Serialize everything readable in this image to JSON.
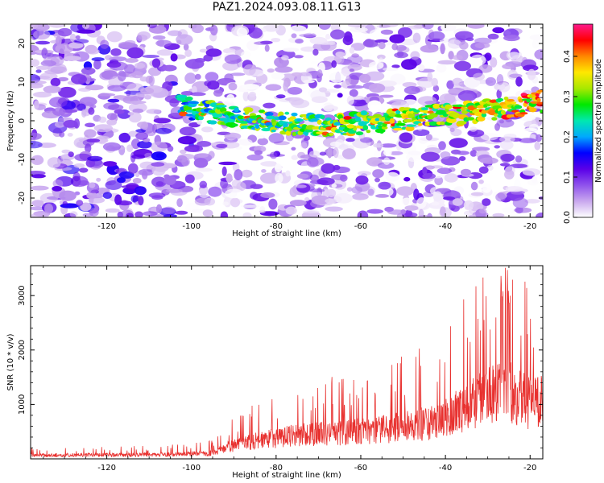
{
  "title": "PAZ1.2024.093.08.11.G13",
  "colors": {
    "snr_line": "#e8312f",
    "colormap": [
      "#ffffff",
      "#c9a8ee",
      "#8f52ec",
      "#5a00e8",
      "#0000ff",
      "#00a8ff",
      "#00e8b0",
      "#00e800",
      "#a8e800",
      "#ffe800",
      "#ff8800",
      "#ff0000",
      "#ff1a8c"
    ]
  },
  "chart_data": [
    {
      "type": "heatmap",
      "title": "PAZ1.2024.093.08.11.G13",
      "xlabel": "Height of straight line (km)",
      "ylabel": "Frequency (Hz)",
      "xlim": [
        -138,
        -17
      ],
      "ylim": [
        -25,
        25
      ],
      "x_ticks": [
        "-120",
        "-100",
        "-80",
        "-60",
        "-40",
        "-20"
      ],
      "y_ticks": [
        "20",
        "10",
        "0",
        "-10",
        "-20"
      ],
      "signal_ridge": {
        "x": [
          -103,
          -95,
          -85,
          -75,
          -65,
          -55,
          -45,
          -35,
          -25,
          -18
        ],
        "frequency": [
          4,
          2,
          0,
          -1,
          -1,
          0,
          1,
          2,
          3.5,
          5
        ],
        "onset_height": -103
      },
      "colorbar": {
        "label": "Normalized spectral amplitude",
        "range": [
          0,
          0.48
        ],
        "ticks": [
          "0.0",
          "0.1",
          "0.2",
          "0.3",
          "0.4"
        ]
      }
    },
    {
      "type": "line",
      "xlabel": "Height of straight line (km)",
      "ylabel": "SNR (10 * v/v)",
      "xlim": [
        -138,
        -17
      ],
      "ylim": [
        0,
        3550
      ],
      "x_ticks": [
        "-120",
        "-100",
        "-80",
        "-60",
        "-40",
        "-20"
      ],
      "y_ticks": [
        "3000",
        "2000",
        "1000"
      ],
      "envelope": {
        "x": [
          -138,
          -110,
          -100,
          -95,
          -92,
          -85,
          -75,
          -65,
          -55,
          -45,
          -40,
          -35,
          -30,
          -25,
          -20,
          -17
        ],
        "y": [
          100,
          110,
          130,
          160,
          300,
          480,
          650,
          700,
          800,
          950,
          1100,
          1400,
          1700,
          1800,
          1500,
          1600
        ]
      }
    }
  ]
}
